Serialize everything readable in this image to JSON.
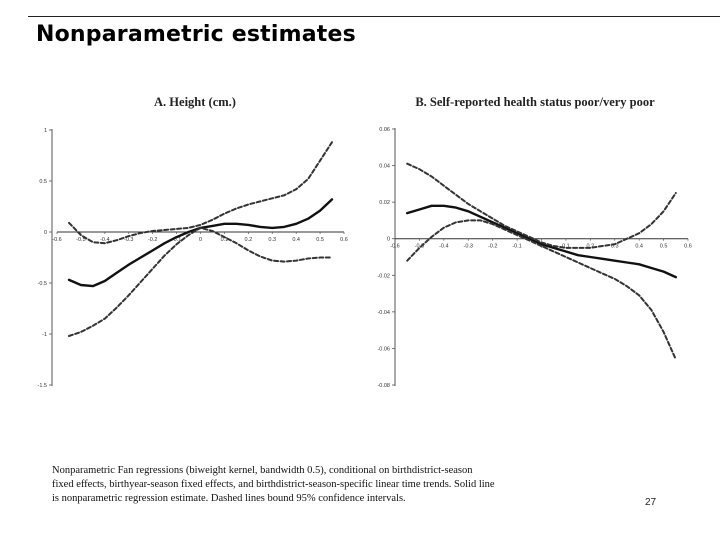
{
  "slide": {
    "title": "Nonparametric estimates",
    "caption": [
      "Nonparametric Fan regressions (biweight kernel, bandwidth   0.5), conditional on birthdistrict-season",
      "fixed effects, birthyear-season fixed effects, and birthdistrict-season-specific linear time trends. Solid line",
      "is nonparametric regression estimate. Dashed lines bound 95% confidence intervals."
    ],
    "page_number": "27"
  },
  "chart_data": [
    {
      "type": "line",
      "title": "A. Height (cm.)",
      "xlim": [
        -0.6,
        0.6
      ],
      "ylim": [
        -1.5,
        1
      ],
      "x_ticks": [
        -0.6,
        -0.5,
        -0.4,
        -0.3,
        -0.2,
        -0.1,
        0,
        0.1,
        0.2,
        0.3,
        0.4,
        0.5,
        0.6
      ],
      "x_tick_labels": [
        "-0.6",
        "-0.5",
        "-0.4",
        "-0.3",
        "-0.2",
        "-0.1",
        "0",
        "0.1",
        "0.2",
        "0.3",
        "0.4",
        "0.5",
        "0.6"
      ],
      "y_ticks": [
        -1.5,
        -1,
        -0.5,
        0,
        0.5,
        1
      ],
      "y_tick_labels": [
        "-1.5",
        "-1",
        "-0.5",
        "0",
        "0.5",
        "1"
      ],
      "grid": false,
      "series": [
        {
          "style": "solid",
          "x": [
            -0.55,
            -0.5,
            -0.45,
            -0.4,
            -0.35,
            -0.3,
            -0.25,
            -0.2,
            -0.15,
            -0.1,
            -0.05,
            0,
            0.05,
            0.1,
            0.15,
            0.2,
            0.25,
            0.3,
            0.35,
            0.4,
            0.45,
            0.5,
            0.55
          ],
          "y": [
            -0.47,
            -0.52,
            -0.53,
            -0.48,
            -0.4,
            -0.32,
            -0.25,
            -0.18,
            -0.11,
            -0.05,
            0,
            0.04,
            0.06,
            0.08,
            0.08,
            0.07,
            0.05,
            0.04,
            0.05,
            0.08,
            0.13,
            0.21,
            0.32
          ]
        },
        {
          "style": "dashed",
          "x": [
            -0.55,
            -0.5,
            -0.45,
            -0.4,
            -0.35,
            -0.3,
            -0.25,
            -0.2,
            -0.15,
            -0.1,
            -0.05,
            0,
            0.05,
            0.1,
            0.15,
            0.2,
            0.25,
            0.3,
            0.35,
            0.4,
            0.45,
            0.5,
            0.55
          ],
          "y": [
            0.09,
            -0.03,
            -0.1,
            -0.11,
            -0.08,
            -0.04,
            -0.01,
            0.01,
            0.02,
            0.03,
            0.04,
            0.07,
            0.12,
            0.18,
            0.23,
            0.27,
            0.3,
            0.33,
            0.36,
            0.42,
            0.52,
            0.7,
            0.88
          ]
        },
        {
          "style": "dashed",
          "x": [
            -0.55,
            -0.5,
            -0.45,
            -0.4,
            -0.35,
            -0.3,
            -0.25,
            -0.2,
            -0.15,
            -0.1,
            -0.05,
            0,
            0.05,
            0.1,
            0.15,
            0.2,
            0.25,
            0.3,
            0.35,
            0.4,
            0.45,
            0.5,
            0.55
          ],
          "y": [
            -1.02,
            -0.98,
            -0.92,
            -0.85,
            -0.74,
            -0.62,
            -0.49,
            -0.36,
            -0.23,
            -0.12,
            -0.03,
            0.04,
            0.01,
            -0.05,
            -0.11,
            -0.18,
            -0.24,
            -0.28,
            -0.29,
            -0.28,
            -0.26,
            -0.25,
            -0.25
          ]
        }
      ]
    },
    {
      "type": "line",
      "title": "B. Self-reported health status poor/very poor",
      "xlim": [
        -0.6,
        0.6
      ],
      "ylim": [
        -0.08,
        0.06
      ],
      "x_ticks": [
        -0.6,
        -0.5,
        -0.4,
        -0.3,
        -0.2,
        -0.1,
        0,
        0.1,
        0.2,
        0.3,
        0.4,
        0.5,
        0.6
      ],
      "x_tick_labels": [
        "-0.6",
        "-0.5",
        "-0.4",
        "-0.3",
        "-0.2",
        "-0.1",
        "0",
        "0.1",
        "0.2",
        "0.3",
        "0.4",
        "0.5",
        "0.6"
      ],
      "y_ticks": [
        -0.08,
        -0.06,
        -0.04,
        -0.02,
        0,
        0.02,
        0.04,
        0.06
      ],
      "y_tick_labels": [
        "-0.08",
        "-0.06",
        "-0.04",
        "-0.02",
        "0",
        "0.02",
        "0.04",
        "0.06"
      ],
      "grid": false,
      "series": [
        {
          "style": "solid",
          "x": [
            -0.55,
            -0.5,
            -0.45,
            -0.4,
            -0.35,
            -0.3,
            -0.25,
            -0.2,
            -0.15,
            -0.1,
            -0.05,
            0,
            0.05,
            0.1,
            0.15,
            0.2,
            0.25,
            0.3,
            0.35,
            0.4,
            0.45,
            0.5,
            0.55
          ],
          "y": [
            0.014,
            0.016,
            0.018,
            0.018,
            0.017,
            0.015,
            0.012,
            0.009,
            0.006,
            0.003,
            0.0,
            -0.003,
            -0.005,
            -0.007,
            -0.009,
            -0.01,
            -0.011,
            -0.012,
            -0.013,
            -0.014,
            -0.016,
            -0.018,
            -0.021
          ]
        },
        {
          "style": "dashed",
          "x": [
            -0.55,
            -0.5,
            -0.45,
            -0.4,
            -0.35,
            -0.3,
            -0.25,
            -0.2,
            -0.15,
            -0.1,
            -0.05,
            0,
            0.05,
            0.1,
            0.15,
            0.2,
            0.25,
            0.3,
            0.35,
            0.4,
            0.45,
            0.5,
            0.55
          ],
          "y": [
            0.041,
            0.038,
            0.034,
            0.029,
            0.024,
            0.019,
            0.015,
            0.011,
            0.007,
            0.004,
            0.001,
            -0.002,
            -0.004,
            -0.005,
            -0.005,
            -0.005,
            -0.004,
            -0.003,
            0.0,
            0.003,
            0.008,
            0.015,
            0.025
          ]
        },
        {
          "style": "dashed",
          "x": [
            -0.55,
            -0.5,
            -0.45,
            -0.4,
            -0.35,
            -0.3,
            -0.25,
            -0.2,
            -0.15,
            -0.1,
            -0.05,
            0,
            0.05,
            0.1,
            0.15,
            0.2,
            0.25,
            0.3,
            0.35,
            0.4,
            0.45,
            0.5,
            0.55
          ],
          "y": [
            -0.012,
            -0.005,
            0.001,
            0.006,
            0.009,
            0.01,
            0.01,
            0.008,
            0.005,
            0.002,
            -0.001,
            -0.004,
            -0.007,
            -0.01,
            -0.013,
            -0.016,
            -0.019,
            -0.022,
            -0.026,
            -0.031,
            -0.039,
            -0.051,
            -0.066
          ]
        }
      ]
    }
  ]
}
